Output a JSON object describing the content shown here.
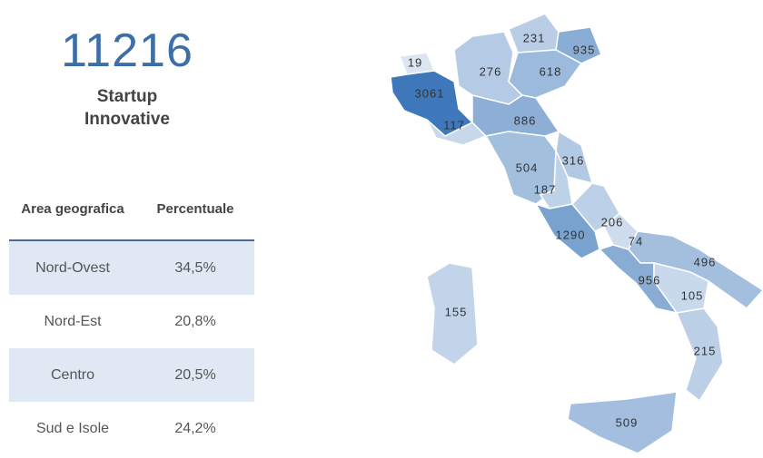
{
  "headline": {
    "value": "11216",
    "label": "Startup Innovative"
  },
  "table": {
    "header": [
      "Area geografica",
      "Percentuale"
    ],
    "rows": [
      [
        "Nord-Ovest",
        "34,5%"
      ],
      [
        "Nord-Est",
        "20,8%"
      ],
      [
        "Centro",
        "20,5%"
      ],
      [
        "Sud e Isole",
        "24,2%"
      ]
    ]
  },
  "map": {
    "values": [
      19,
      3061,
      276,
      231,
      935,
      618,
      117,
      886,
      316,
      504,
      187,
      1290,
      206,
      74,
      496,
      956,
      105,
      215,
      155,
      509
    ]
  }
}
